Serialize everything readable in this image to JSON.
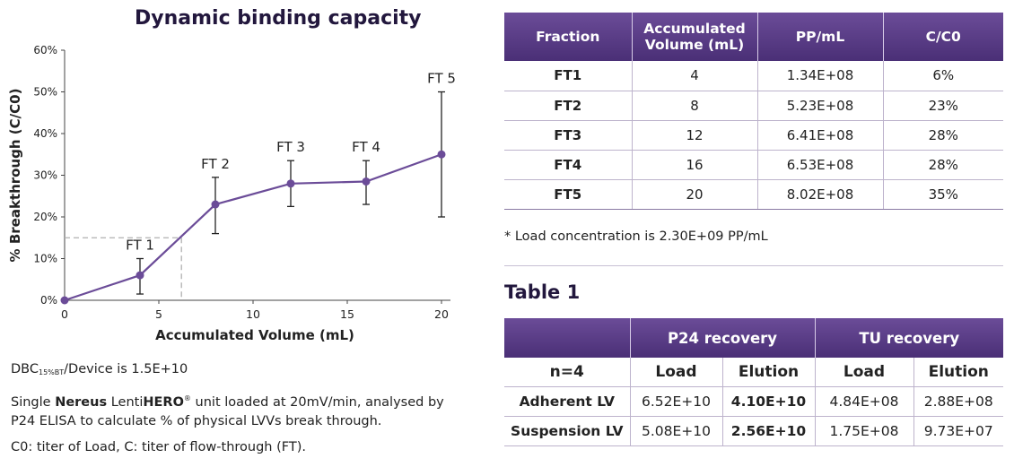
{
  "chart_data": {
    "type": "line",
    "title": "Dynamic binding capacity",
    "xlabel": "Accumulated Volume (mL)",
    "ylabel": "% Breakthrough (C/C0)",
    "xlim": [
      0,
      20
    ],
    "ylim": [
      0,
      60
    ],
    "x_ticks": [
      "0",
      "5",
      "10",
      "15",
      "20"
    ],
    "y_ticks": [
      "0%",
      "10%",
      "20%",
      "30%",
      "40%",
      "50%",
      "60%"
    ],
    "grid": false,
    "points": [
      {
        "x": 0,
        "y": 0,
        "label": "",
        "err_low": 0,
        "err_high": 0
      },
      {
        "x": 4,
        "y": 6,
        "label": "FT 1",
        "err_low": 1.5,
        "err_high": 10
      },
      {
        "x": 8,
        "y": 23,
        "label": "FT 2",
        "err_low": 16,
        "err_high": 29.5
      },
      {
        "x": 12,
        "y": 28,
        "label": "FT 3",
        "err_low": 22.5,
        "err_high": 33.5
      },
      {
        "x": 16,
        "y": 28.5,
        "label": "FT 4",
        "err_low": 23,
        "err_high": 33.5
      },
      {
        "x": 20,
        "y": 35,
        "label": "FT 5",
        "err_low": 20,
        "err_high": 50
      }
    ],
    "reference": {
      "x": 6.2,
      "y": 15
    },
    "colors": {
      "line": "#6b4c98",
      "marker": "#6b4c98",
      "error": "#222222",
      "reference": "#b0b0b0"
    }
  },
  "notes": {
    "dbc_prefix": "DBC",
    "dbc_sub": "15%BT",
    "dbc_rest": "/Device is 1.5E+10",
    "line2_a": "Single ",
    "line2_brand": "Nereus",
    "line2_b": " Lenti",
    "line2_hero": "HERO",
    "line2_reg": "®",
    "line2_c": " unit loaded at 20mV/min, analysed by",
    "line2_d": "P24 ELISA to calculate % of physical LVVs break through.",
    "line3": "C0: titer of Load, C: titer of flow-through (FT)."
  },
  "table_main": {
    "headers": [
      "Fraction",
      "Accumulated Volume (mL)",
      "PP/mL",
      "C/C0"
    ],
    "rows": [
      [
        "FT1",
        "4",
        "1.34E+08",
        "6%"
      ],
      [
        "FT2",
        "8",
        "5.23E+08",
        "23%"
      ],
      [
        "FT3",
        "12",
        "6.41E+08",
        "28%"
      ],
      [
        "FT4",
        "16",
        "6.53E+08",
        "28%"
      ],
      [
        "FT5",
        "20",
        "8.02E+08",
        "35%"
      ]
    ]
  },
  "footnote": "* Load concentration is 2.30E+09 PP/mL",
  "table1_title": "Table 1",
  "table_recovery": {
    "group_headers": [
      "",
      "P24 recovery",
      "TU recovery"
    ],
    "sub_headers": [
      "n=4",
      "Load",
      "Elution",
      "Load",
      "Elution"
    ],
    "rows": [
      [
        "Adherent LV",
        "6.52E+10",
        "4.10E+10",
        "4.84E+08",
        "2.88E+08"
      ],
      [
        "Suspension LV",
        "5.08E+10",
        "2.56E+10",
        "1.75E+08",
        "9.73E+07"
      ]
    ]
  }
}
